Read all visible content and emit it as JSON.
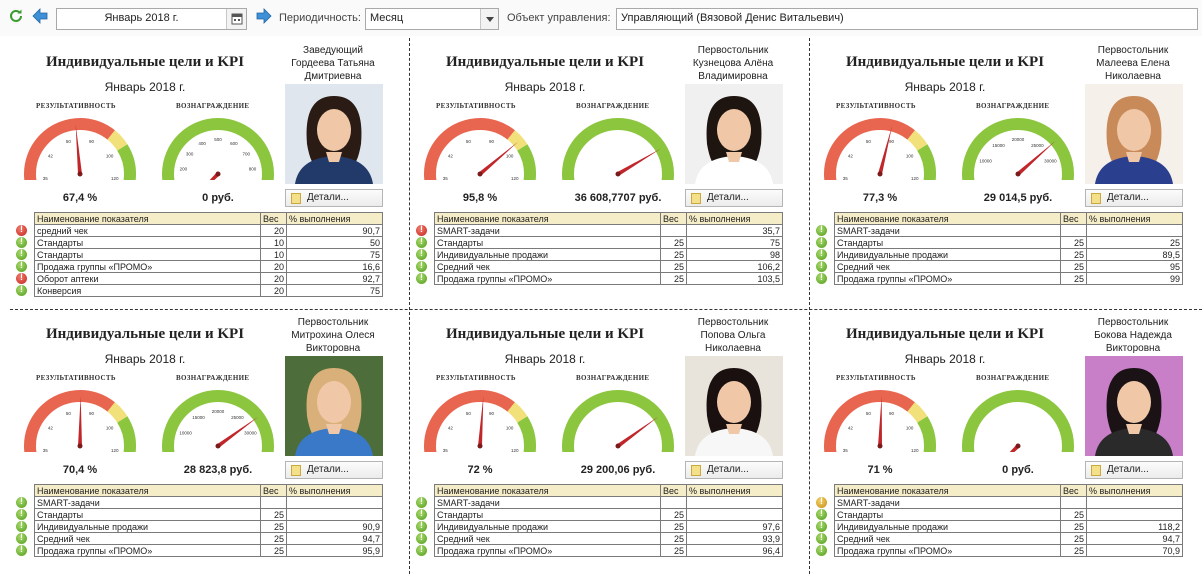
{
  "toolbar": {
    "date": "Январь 2018 г.",
    "period_label": "Периодичность:",
    "period_value": "Месяц",
    "object_label": "Объект управления:",
    "object_value": "Управляющий (Вязовой Денис Витальевич)",
    "icons": [
      "refresh-icon",
      "arrow-left-icon",
      "calendar-icon",
      "arrow-right-icon",
      "dropdown-arrow-icon"
    ]
  },
  "colors": {
    "gauge_red": "#e8654f",
    "gauge_yellow": "#f2e07a",
    "gauge_green": "#8cc63f",
    "needle": "#c0262a",
    "table_header": "#f5ecc8"
  },
  "labels": {
    "title": "Индивидуальные цели и KPI",
    "month": "Январь 2018 г.",
    "result_gauge": "РЕЗУЛЬТАТИВНОСТЬ",
    "reward_gauge": "ВОЗНАГРАЖДЕНИЕ",
    "details": "Детали...",
    "col_name": "Наименование показателя",
    "col_weight": "Вес",
    "col_percent": "% выполнения"
  },
  "cards": [
    {
      "role": "Заведующий",
      "name": "Гордеева Татьяна Дмитриевна",
      "result_value": "67,4 %",
      "result_percent": 67.4,
      "reward_value": "0 руб.",
      "reward_fraction": 0,
      "result_ticks": [
        "0",
        "35",
        "42",
        "50",
        "90",
        "100",
        "120",
        "140"
      ],
      "reward_ticks": [
        "0",
        "100",
        "200",
        "300",
        "400",
        "500",
        "600",
        "700",
        "800",
        "900",
        "1000"
      ],
      "rows": [
        {
          "status": "red",
          "name": "средний чек",
          "weight": "20",
          "percent": "90,7"
        },
        {
          "status": "green",
          "name": "Стандарты",
          "weight": "10",
          "percent": "50"
        },
        {
          "status": "green",
          "name": "Стандарты",
          "weight": "10",
          "percent": "75"
        },
        {
          "status": "green",
          "name": "Продажа группы «ПРОМО»",
          "weight": "20",
          "percent": "16,6"
        },
        {
          "status": "red",
          "name": "Оборот аптеки",
          "weight": "20",
          "percent": "92,7"
        },
        {
          "status": "green",
          "name": "Конверсия",
          "weight": "20",
          "percent": "75"
        }
      ]
    },
    {
      "role": "Первостольник",
      "name": "Кузнецова Алёна Владимировна",
      "result_value": "95,8 %",
      "result_percent": 95.8,
      "reward_value": "36 608,7707 руб.",
      "reward_fraction": 0.72,
      "result_ticks": [
        "0",
        "35",
        "42",
        "50",
        "90",
        "100",
        "120",
        "140"
      ],
      "reward_ticks": [],
      "rows": [
        {
          "status": "red",
          "name": "SMART-задачи",
          "weight": "",
          "percent": "35,7"
        },
        {
          "status": "green",
          "name": "Стандарты",
          "weight": "25",
          "percent": "75"
        },
        {
          "status": "green",
          "name": "Индивидуальные продажи",
          "weight": "25",
          "percent": "98"
        },
        {
          "status": "green",
          "name": "Средний чек",
          "weight": "25",
          "percent": "106,2"
        },
        {
          "status": "green",
          "name": "Продажа группы «ПРОМО»",
          "weight": "25",
          "percent": "103,5"
        }
      ]
    },
    {
      "role": "Первостольник",
      "name": "Малеева Елена Николаевна",
      "result_value": "77,3 %",
      "result_percent": 77.3,
      "reward_value": "29 014,5 руб.",
      "reward_fraction": 0.68,
      "result_ticks": [
        "0",
        "35",
        "42",
        "50",
        "90",
        "100",
        "120",
        "140"
      ],
      "reward_ticks": [
        "0",
        "5000",
        "10000",
        "15000",
        "20000",
        "25000",
        "30000",
        "35000",
        "40000"
      ],
      "rows": [
        {
          "status": "green",
          "name": "SMART-задачи",
          "weight": "",
          "percent": ""
        },
        {
          "status": "green",
          "name": "Стандарты",
          "weight": "25",
          "percent": "25"
        },
        {
          "status": "green",
          "name": "Индивидуальные продажи",
          "weight": "25",
          "percent": "89,5"
        },
        {
          "status": "green",
          "name": "Средний чек",
          "weight": "25",
          "percent": "95"
        },
        {
          "status": "green",
          "name": "Продажа группы «ПРОМО»",
          "weight": "25",
          "percent": "99"
        }
      ]
    },
    {
      "role": "Первостольник",
      "name": "Митрохина Олеся Викторовна",
      "result_value": "70,4 %",
      "result_percent": 70.4,
      "reward_value": "28 823,8 руб.",
      "reward_fraction": 0.7,
      "result_ticks": [
        "0",
        "35",
        "42",
        "50",
        "90",
        "100",
        "120",
        "140"
      ],
      "reward_ticks": [
        "0",
        "5000",
        "10000",
        "15000",
        "20000",
        "25000",
        "30000",
        "35000",
        "40000"
      ],
      "rows": [
        {
          "status": "green",
          "name": "SMART-задачи",
          "weight": "",
          "percent": ""
        },
        {
          "status": "green",
          "name": "Стандарты",
          "weight": "25",
          "percent": ""
        },
        {
          "status": "green",
          "name": "Индивидуальные продажи",
          "weight": "25",
          "percent": "90,9"
        },
        {
          "status": "green",
          "name": "Средний чек",
          "weight": "25",
          "percent": "94,7"
        },
        {
          "status": "green",
          "name": "Продажа группы «ПРОМО»",
          "weight": "25",
          "percent": "95,9"
        }
      ]
    },
    {
      "role": "Первостольник",
      "name": "Попова Ольга Николаевна",
      "result_value": "72 %",
      "result_percent": 72,
      "reward_value": "29 200,06 руб.",
      "reward_fraction": 0.7,
      "result_ticks": [
        "0",
        "35",
        "42",
        "50",
        "90",
        "100",
        "120",
        "140"
      ],
      "reward_ticks": [],
      "rows": [
        {
          "status": "green",
          "name": "SMART-задачи",
          "weight": "",
          "percent": ""
        },
        {
          "status": "green",
          "name": "Стандарты",
          "weight": "25",
          "percent": ""
        },
        {
          "status": "green",
          "name": "Индивидуальные продажи",
          "weight": "25",
          "percent": "97,6"
        },
        {
          "status": "green",
          "name": "Средний чек",
          "weight": "25",
          "percent": "93,9"
        },
        {
          "status": "green",
          "name": "Продажа группы «ПРОМО»",
          "weight": "25",
          "percent": "96,4"
        }
      ]
    },
    {
      "role": "Первостольник",
      "name": "Бокова Надежда Викторовна",
      "result_value": "71 %",
      "result_percent": 71,
      "reward_value": "0 руб.",
      "reward_fraction": 0,
      "result_ticks": [
        "0",
        "35",
        "42",
        "50",
        "90",
        "100",
        "120",
        "140"
      ],
      "reward_ticks": [],
      "rows": [
        {
          "status": "yellow",
          "name": "SMART-задачи",
          "weight": "",
          "percent": ""
        },
        {
          "status": "green",
          "name": "Стандарты",
          "weight": "25",
          "percent": ""
        },
        {
          "status": "green",
          "name": "Индивидуальные продажи",
          "weight": "25",
          "percent": "118,2"
        },
        {
          "status": "green",
          "name": "Средний чек",
          "weight": "25",
          "percent": "94,7"
        },
        {
          "status": "green",
          "name": "Продажа группы «ПРОМО»",
          "weight": "25",
          "percent": "70,9"
        }
      ]
    }
  ]
}
